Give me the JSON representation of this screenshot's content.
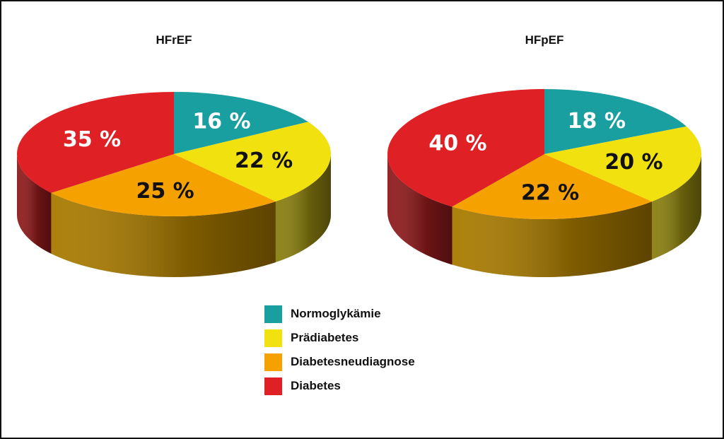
{
  "chart_data": [
    {
      "type": "pie",
      "title": "HFrEF",
      "slices": [
        {
          "label": "Normoglykämie",
          "value": 16,
          "text": "16 %"
        },
        {
          "label": "Prädiabetes",
          "value": 22,
          "text": "22 %"
        },
        {
          "label": "Diabetesneudiagnose",
          "value": 25,
          "text": "25 %"
        },
        {
          "label": "Diabetes",
          "value": 35,
          "text": "35 %"
        }
      ]
    },
    {
      "type": "pie",
      "title": "HFpEF",
      "slices": [
        {
          "label": "Normoglykämie",
          "value": 18,
          "text": "18 %"
        },
        {
          "label": "Prädiabetes",
          "value": 20,
          "text": "20 %"
        },
        {
          "label": "Diabetesneudiagnose",
          "value": 22,
          "text": "22 %"
        },
        {
          "label": "Diabetes",
          "value": 40,
          "text": "40 %"
        }
      ]
    }
  ],
  "legend": {
    "placement": "bottom-center",
    "items": [
      {
        "label": "Normoglykämie",
        "color": "#1a9fa0"
      },
      {
        "label": "Prädiabetes",
        "color": "#f1e20f"
      },
      {
        "label": "Diabetesneudiagnose",
        "color": "#f5a100"
      },
      {
        "label": "Diabetes",
        "color": "#df2025"
      }
    ]
  },
  "style": {
    "label_colors": {
      "Normoglykämie": "#ffffff",
      "Prädiabetes": "#111111",
      "Diabetesneudiagnose": "#111111",
      "Diabetes": "#ffffff"
    },
    "side_colors": {
      "Normoglykämie": "#0c6a6b",
      "Prädiabetes": "#8a7f10",
      "Diabetesneudiagnose": "#a87a00",
      "Diabetes": "#8f1a1c"
    }
  }
}
